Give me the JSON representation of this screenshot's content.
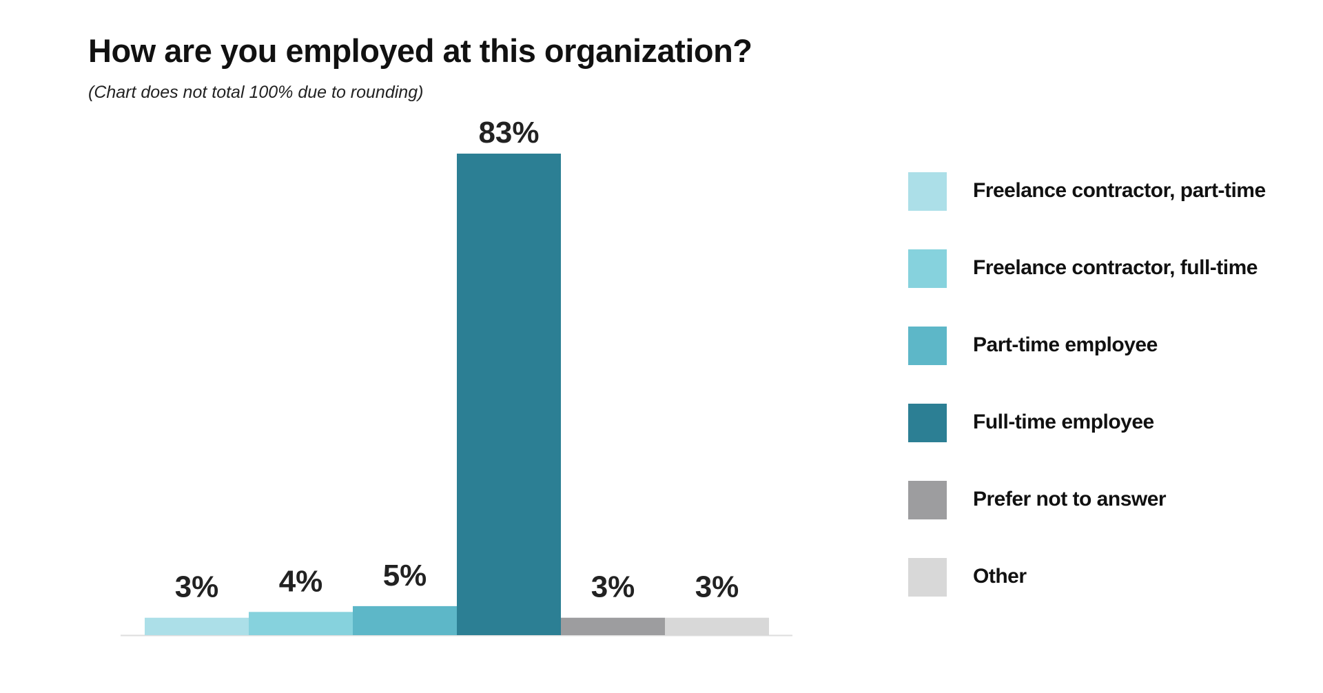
{
  "chart_data": {
    "type": "bar",
    "title": "How are you employed at this organization?",
    "subtitle": "(Chart does not total 100% due to rounding)",
    "categories": [
      "Freelance contractor, part-time",
      "Freelance contractor, full-time",
      "Part-time employee",
      "Full-time employee",
      "Prefer not to answer",
      "Other"
    ],
    "values": [
      3,
      4,
      5,
      83,
      3,
      3
    ],
    "data_labels": [
      "3%",
      "4%",
      "5%",
      "83%",
      "3%",
      "3%"
    ],
    "colors": [
      "#acdfe8",
      "#86d2dd",
      "#5db7c8",
      "#2c7f94",
      "#9d9d9f",
      "#d8d8d8"
    ],
    "ylim": [
      0,
      83
    ],
    "grid": false,
    "legend_position": "right",
    "baseline_color": "#dddddd"
  }
}
